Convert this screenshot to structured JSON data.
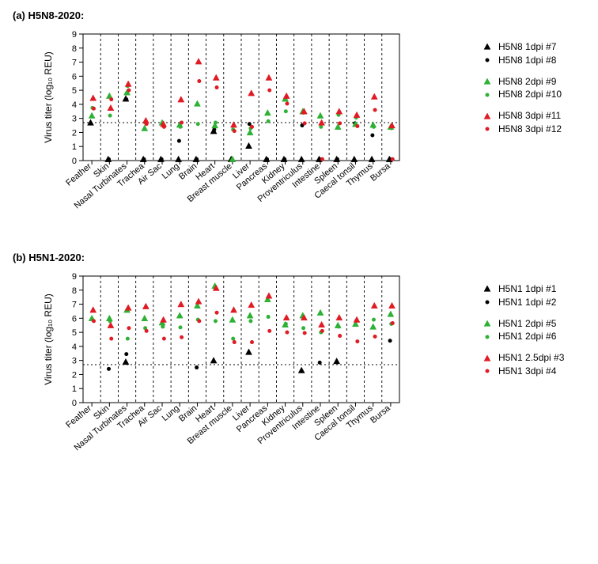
{
  "colors": {
    "black": "#000000",
    "green": "#2eb135",
    "red": "#e01b24",
    "grid": "#000000",
    "background": "#ffffff"
  },
  "marker_sizes": {
    "triangle": 8,
    "circle": 4
  },
  "chart_common": {
    "ylabel": "Virus titer (log₁₀  REU)",
    "ylabel_fontsize": 12,
    "tick_fontsize": 11,
    "xlabel_fontsize": 11,
    "ylim": [
      0,
      9
    ],
    "ytick_step": 1,
    "ref_line_y": 2.7,
    "x_categories": [
      "Feather",
      "Skin",
      "Nasal Turbinates",
      "Trachea",
      "Air Sac",
      "Lung",
      "Brain",
      "Heart",
      "Breast muscle",
      "Liver",
      "Pancreas",
      "Kidney",
      "Proventriculus",
      "Intestine",
      "Spleen",
      "Caecal tonsil",
      "Thymus",
      "Bursa"
    ],
    "tick_len": 5
  },
  "panels": {
    "a": {
      "title": "(a) H5N8-2020:",
      "series": [
        {
          "label": "H5N8 1dpi #7",
          "color": "black",
          "marker": "triangle",
          "values": [
            2.7,
            0.1,
            4.4,
            0.1,
            0.1,
            0.1,
            0.1,
            2.1,
            0.1,
            1.05,
            0.1,
            0.1,
            0.1,
            0.1,
            0.1,
            0.1,
            0.1,
            0.1
          ]
        },
        {
          "label": "H5N8 1dpi #8",
          "color": "black",
          "marker": "circle",
          "values": [
            null,
            0.1,
            4.35,
            0.1,
            0.1,
            1.4,
            0.1,
            2.2,
            0.1,
            2.6,
            0.1,
            0.1,
            2.5,
            0.1,
            0.1,
            2.65,
            1.8,
            0.1
          ]
        },
        {
          "label": "H5N8 2dpi #9",
          "color": "green",
          "marker": "triangle",
          "values": [
            3.2,
            4.6,
            4.85,
            2.3,
            2.7,
            2.55,
            4.05,
            2.5,
            0.1,
            2.0,
            3.4,
            4.4,
            3.5,
            3.2,
            2.4,
            2.6,
            2.55,
            2.4
          ]
        },
        {
          "label": "H5N8 2dpi #10",
          "color": "green",
          "marker": "circle",
          "values": [
            3.75,
            3.2,
            5.3,
            2.7,
            2.6,
            2.4,
            2.6,
            2.7,
            2.2,
            2.3,
            2.8,
            3.5,
            3.4,
            2.4,
            3.25,
            3.05,
            2.4,
            2.3
          ]
        },
        {
          "label": "H5N8 3dpi #11",
          "color": "red",
          "marker": "triangle",
          "values": [
            4.45,
            3.75,
            5.45,
            2.85,
            2.6,
            4.35,
            7.05,
            5.9,
            2.55,
            4.8,
            5.9,
            4.6,
            3.5,
            2.7,
            3.5,
            3.25,
            4.55,
            2.5
          ]
        },
        {
          "label": "H5N8 3dpi #12",
          "color": "red",
          "marker": "circle",
          "values": [
            3.7,
            4.35,
            5.0,
            2.6,
            2.4,
            2.7,
            5.65,
            5.2,
            2.1,
            2.4,
            5.0,
            4.05,
            2.65,
            0.1,
            2.65,
            2.45,
            3.6,
            0.1
          ]
        }
      ]
    },
    "b": {
      "title": "(b) H5N1-2020:",
      "series": [
        {
          "label": "H5N1 1dpi #1",
          "color": "black",
          "marker": "triangle",
          "values": [
            null,
            null,
            2.9,
            null,
            null,
            null,
            null,
            3.0,
            null,
            3.6,
            null,
            null,
            2.3,
            null,
            2.95,
            null,
            null,
            null
          ]
        },
        {
          "label": "H5N1 1dpi #2",
          "color": "black",
          "marker": "circle",
          "values": [
            null,
            2.4,
            3.45,
            null,
            null,
            null,
            2.5,
            null,
            null,
            null,
            null,
            null,
            null,
            2.85,
            null,
            null,
            null,
            4.4
          ]
        },
        {
          "label": "H5N1 2dpi #5",
          "color": "green",
          "marker": "triangle",
          "values": [
            6.0,
            6.0,
            6.6,
            6.0,
            5.7,
            6.2,
            6.9,
            8.3,
            5.9,
            6.2,
            7.35,
            5.55,
            6.2,
            6.4,
            5.5,
            5.6,
            5.4,
            6.3
          ]
        },
        {
          "label": "H5N1 2dpi #6",
          "color": "green",
          "marker": "circle",
          "values": [
            5.9,
            5.8,
            4.55,
            5.3,
            5.4,
            5.35,
            5.9,
            5.8,
            4.55,
            5.8,
            6.1,
            5.6,
            5.3,
            5.0,
            5.4,
            5.8,
            5.9,
            5.6
          ]
        },
        {
          "label": "H5N1 2.5dpi #3",
          "color": "red",
          "marker": "triangle",
          "values": [
            6.6,
            5.5,
            6.75,
            6.85,
            5.9,
            7.0,
            7.2,
            8.15,
            6.6,
            6.95,
            7.6,
            6.05,
            6.05,
            5.55,
            6.05,
            5.9,
            6.9,
            6.9
          ]
        },
        {
          "label": "H5N1 3dpi #4",
          "color": "red",
          "marker": "circle",
          "values": [
            5.8,
            4.55,
            5.3,
            5.1,
            4.55,
            4.65,
            5.8,
            6.4,
            4.3,
            4.3,
            5.1,
            5.0,
            4.95,
            5.1,
            4.75,
            4.35,
            4.7,
            5.65
          ]
        }
      ]
    }
  }
}
